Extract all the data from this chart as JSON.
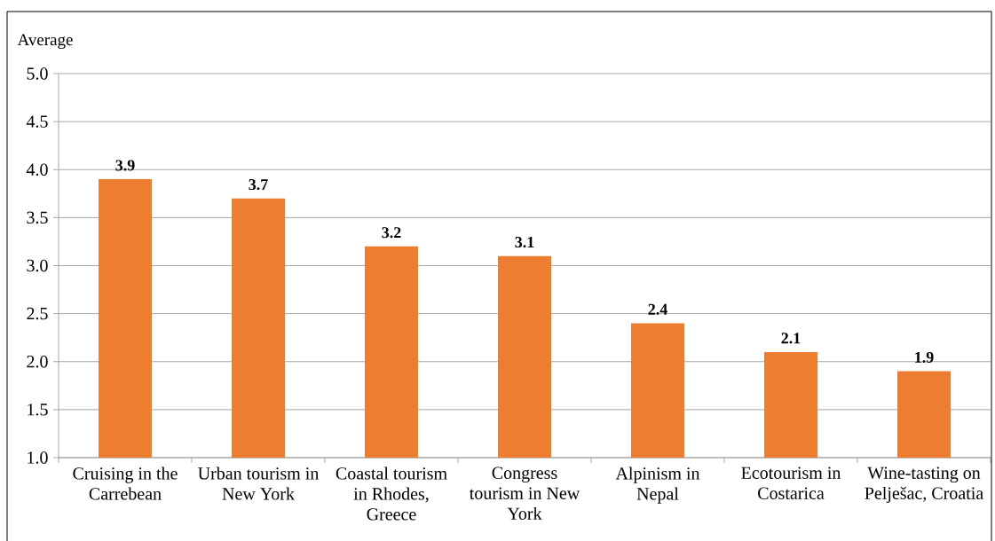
{
  "chart_data": {
    "type": "bar",
    "ylabel": "Average",
    "categories": [
      "Cruising in the Carrebean",
      "Urban tourism in New York",
      "Coastal tourism in Rhodes, Greece",
      "Congress tourism in New York",
      "Alpinism in Nepal",
      "Ecotourism in Costarica",
      "Wine-tasting on Pelješac, Croatia"
    ],
    "values": [
      3.9,
      3.7,
      3.2,
      3.1,
      2.4,
      2.1,
      1.9
    ],
    "color": "#ed7d31",
    "ylim": [
      1,
      5
    ],
    "yticks": [
      {
        "value": 1,
        "label": "1.0"
      },
      {
        "value": 1.5,
        "label": "1.5"
      },
      {
        "value": 2,
        "label": "2.0"
      },
      {
        "value": 2.5,
        "label": "2.5"
      },
      {
        "value": 3,
        "label": "3.0"
      },
      {
        "value": 3.5,
        "label": "3.5"
      },
      {
        "value": 4,
        "label": "4.0"
      },
      {
        "value": 4.5,
        "label": "4.5"
      },
      {
        "value": 5,
        "label": "5.0"
      }
    ],
    "grid": "y",
    "data_labels": true
  }
}
